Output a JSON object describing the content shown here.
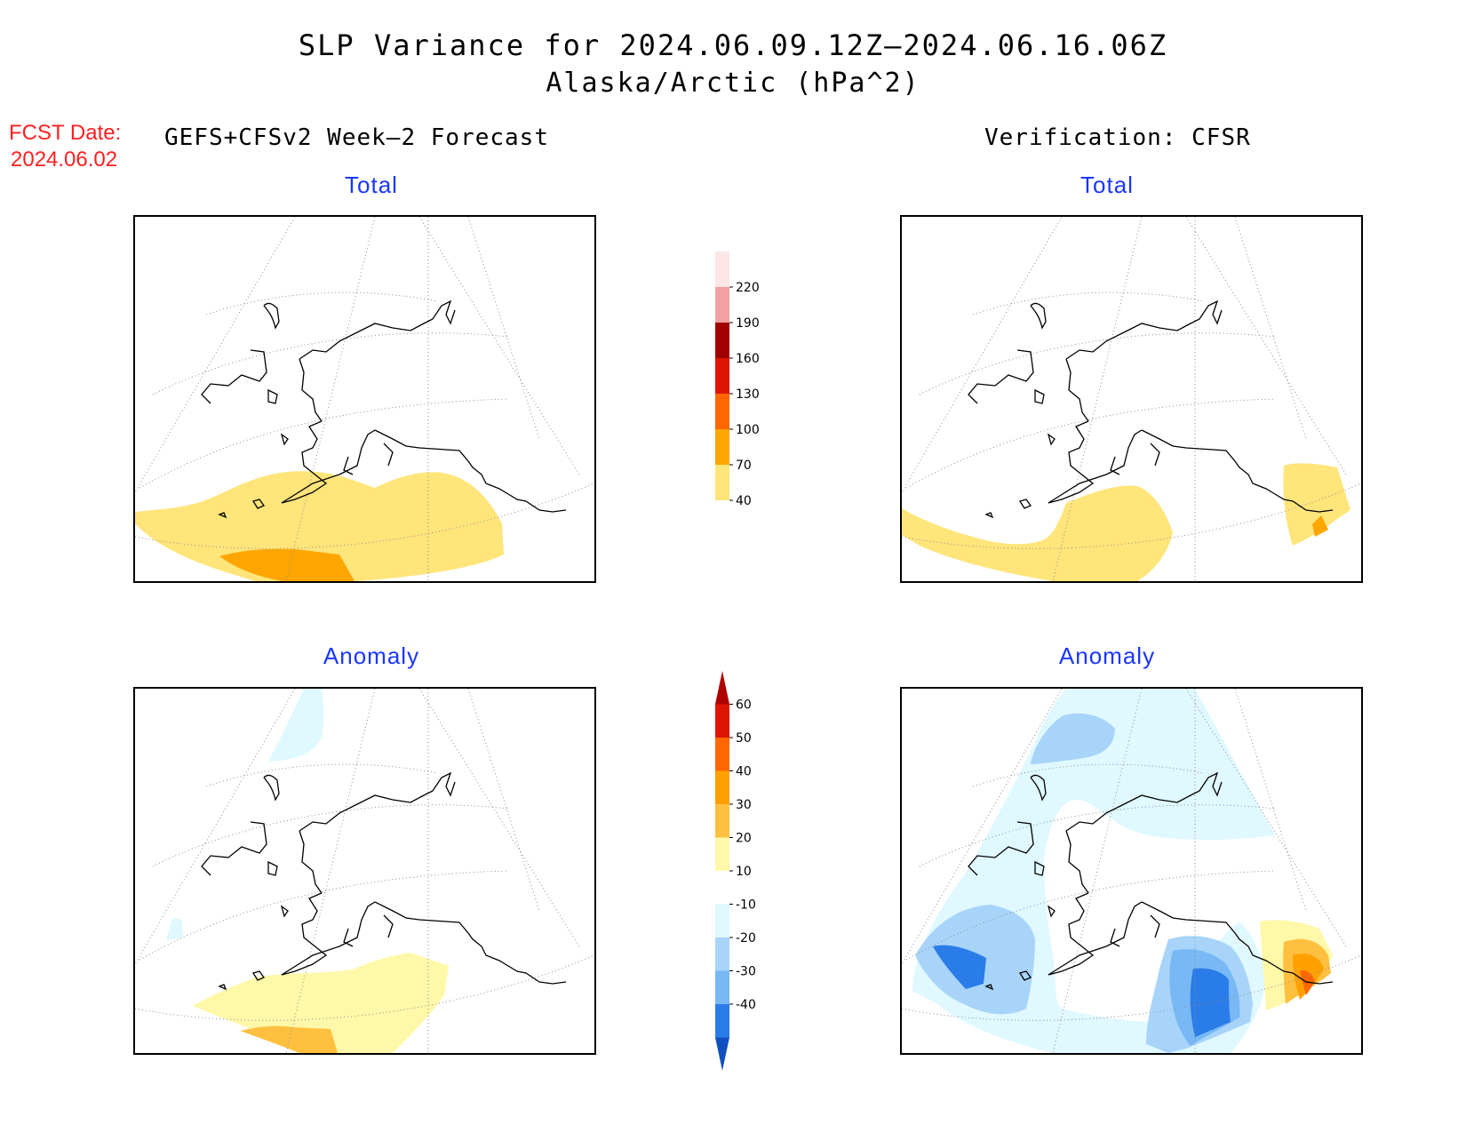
{
  "title": "SLP Variance for 2024.06.09.12Z–2024.06.16.06Z",
  "subtitle": "Alaska/Arctic (hPa^2)",
  "fcst": {
    "label": "FCST Date:",
    "date": "2024.06.02"
  },
  "columns": {
    "left": "GEFS+CFSv2 Week–2 Forecast",
    "right": "Verification: CFSR"
  },
  "panels": {
    "forecast_total": "Total",
    "verification_total": "Total",
    "forecast_anomaly": "Anomaly",
    "verification_anomaly": "Anomaly"
  },
  "colorbars": {
    "total": {
      "labels": [
        "220",
        "190",
        "160",
        "130",
        "100",
        "70",
        "40"
      ],
      "colors": [
        "#fde6e6",
        "#f3a0a0",
        "#a00000",
        "#de1500",
        "#ff6600",
        "#ffa500",
        "#ffe57a"
      ]
    },
    "anomaly": {
      "labels": [
        "60",
        "50",
        "40",
        "30",
        "20",
        "10",
        "-10",
        "-20",
        "-30",
        "-40"
      ],
      "colors": [
        "#b00000",
        "#de1500",
        "#ff6600",
        "#ffa000",
        "#ffc040",
        "#fff8a8",
        "#ffffff",
        "#e0f8ff",
        "#a8d4fa",
        "#78b8f5",
        "#2a7ce8",
        "#1050c0"
      ]
    }
  },
  "colors": {
    "light_yellow": "#ffe57a",
    "orange": "#ffa500",
    "pale_yellow": "#fff8a8",
    "yellow_orange": "#ffc040",
    "pale_cyan": "#e0f8ff",
    "light_blue": "#a8d4fa",
    "mid_blue": "#78b8f5",
    "blue": "#2a7ce8",
    "dark_orange": "#ff6600",
    "title_blue": "#1a36ff",
    "fcst_red": "#ff2020"
  }
}
